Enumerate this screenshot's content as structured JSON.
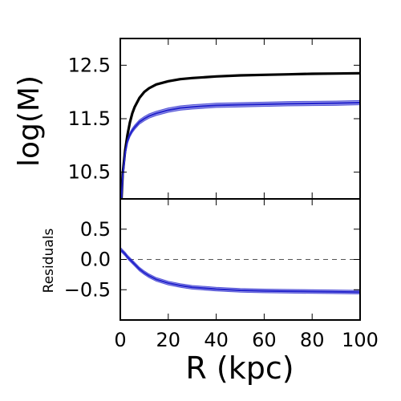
{
  "chart_data": [
    {
      "type": "line",
      "panel": "top",
      "ylabel": "log(M)",
      "xlim": [
        0,
        100
      ],
      "ylim": [
        10.0,
        13.0
      ],
      "yticks": [
        10.5,
        11.5,
        12.5
      ],
      "ytick_labels": [
        "10.5",
        "11.5",
        "12.5"
      ],
      "series": [
        {
          "color": "#000000",
          "x": [
            0.5,
            1,
            2,
            3,
            4,
            5,
            6,
            8,
            10,
            12,
            15,
            20,
            25,
            30,
            40,
            50,
            60,
            70,
            80,
            90,
            100
          ],
          "y": [
            10.0,
            10.47,
            10.9,
            11.2,
            11.43,
            11.6,
            11.72,
            11.89,
            12.0,
            12.07,
            12.14,
            12.2,
            12.24,
            12.26,
            12.29,
            12.31,
            12.32,
            12.33,
            12.34,
            12.345,
            12.35
          ]
        },
        {
          "color": "#2222cc",
          "band": 0.04,
          "x": [
            0.5,
            1,
            2,
            3,
            4,
            5,
            6,
            8,
            10,
            12,
            15,
            20,
            25,
            30,
            40,
            50,
            60,
            70,
            80,
            90,
            100
          ],
          "y": [
            10.0,
            10.4,
            10.85,
            11.08,
            11.2,
            11.28,
            11.34,
            11.44,
            11.5,
            11.55,
            11.6,
            11.66,
            11.7,
            11.72,
            11.75,
            11.76,
            11.77,
            11.78,
            11.785,
            11.79,
            11.8
          ]
        }
      ]
    },
    {
      "type": "line",
      "panel": "bottom",
      "xlabel": "R (kpc)",
      "ylabel": "Residuals",
      "xlim": [
        0,
        100
      ],
      "ylim": [
        -1.0,
        1.0
      ],
      "xticks": [
        0,
        20,
        40,
        60,
        80,
        100
      ],
      "xtick_labels": [
        "0",
        "20",
        "40",
        "60",
        "80",
        "100"
      ],
      "yticks": [
        0.5,
        0.0,
        -0.5
      ],
      "ytick_labels": [
        "0.5",
        "0.0",
        "−0.5"
      ],
      "reference_line": {
        "y": 0.0,
        "style": "dashed",
        "color": "#555555"
      },
      "series": [
        {
          "color": "#2222cc",
          "band": 0.03,
          "x": [
            0.5,
            1,
            2,
            3,
            4,
            6,
            8,
            10,
            12,
            15,
            20,
            25,
            30,
            40,
            50,
            60,
            70,
            80,
            90,
            100
          ],
          "y": [
            0.15,
            0.13,
            0.09,
            0.04,
            0.0,
            -0.08,
            -0.16,
            -0.22,
            -0.27,
            -0.33,
            -0.39,
            -0.43,
            -0.46,
            -0.49,
            -0.51,
            -0.52,
            -0.525,
            -0.53,
            -0.535,
            -0.54
          ]
        }
      ]
    }
  ]
}
